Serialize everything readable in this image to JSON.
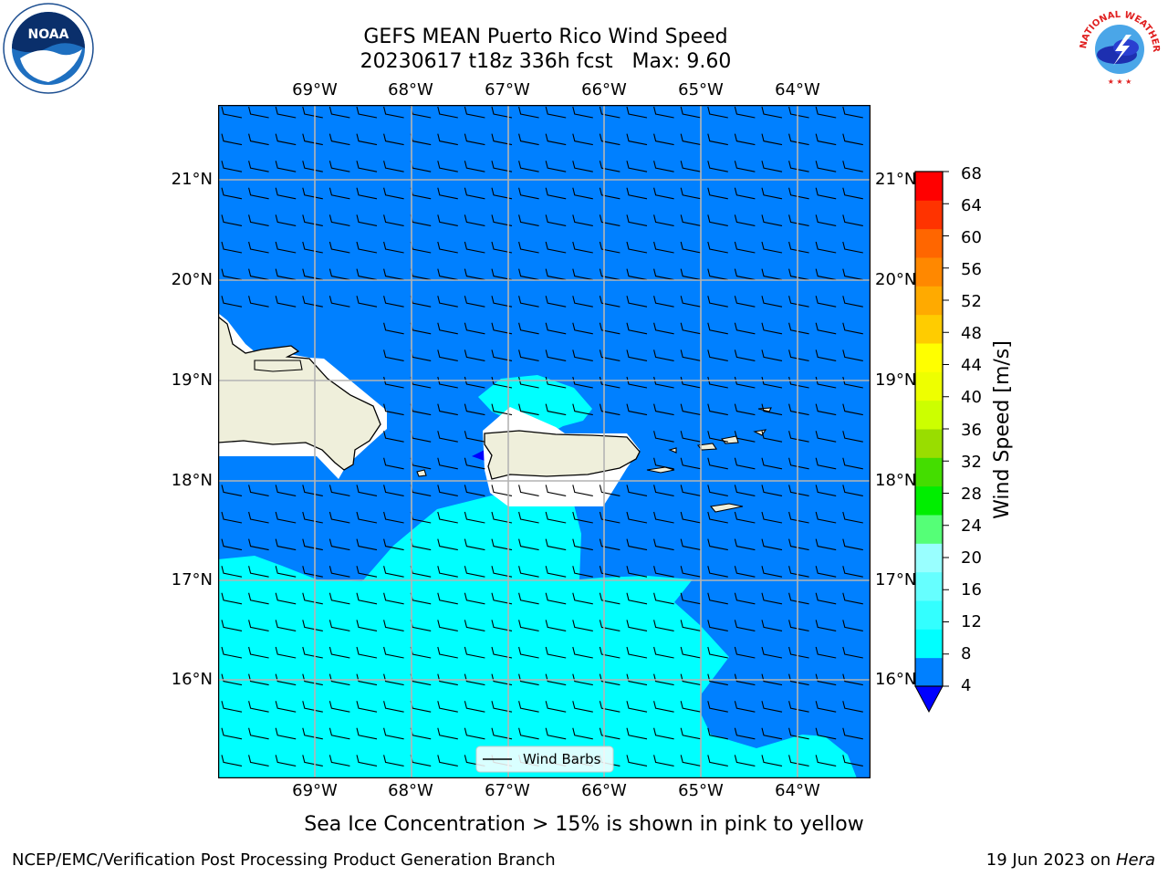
{
  "title": {
    "line1": "GEFS MEAN Puerto Rico Wind Speed",
    "line2": "20230617 t18z 336h fcst   Max: 9.60"
  },
  "map": {
    "lon_labels": [
      "69°W",
      "68°W",
      "67°W",
      "66°W",
      "65°W",
      "64°W"
    ],
    "lat_labels": [
      "21°N",
      "20°N",
      "19°N",
      "18°N",
      "17°N",
      "16°N"
    ],
    "legend_label": "Wind Barbs",
    "ocean_color": "#0080ff",
    "cyan_color": "#00ffff",
    "land_color": "#efefdb"
  },
  "colorbar": {
    "title": "Wind Speed [m/s]",
    "ticks": [
      "4",
      "8",
      "12",
      "16",
      "20",
      "24",
      "28",
      "32",
      "36",
      "40",
      "44",
      "48",
      "52",
      "56",
      "60",
      "64",
      "68"
    ],
    "colors": [
      "#0080ff",
      "#00ffff",
      "#33ffff",
      "#66ffff",
      "#99ffff",
      "#55ff77",
      "#00ee00",
      "#44dd00",
      "#99dd00",
      "#ccff00",
      "#eeff00",
      "#ffff00",
      "#ffcc00",
      "#ffaa00",
      "#ff8800",
      "#ff6600",
      "#ff3300",
      "#ff0000"
    ],
    "under_color": "#0000ff"
  },
  "note": "Sea Ice Concentration > 15% is shown in pink to yellow",
  "footer": {
    "left": "NCEP/EMC/Verification Post Processing Product Generation Branch",
    "right_prefix": "19 Jun 2023 on ",
    "right_host": "Hera"
  },
  "logos": {
    "noaa_text": "NOAA",
    "nws_text": "NATIONAL WEATHER SERVICE"
  }
}
